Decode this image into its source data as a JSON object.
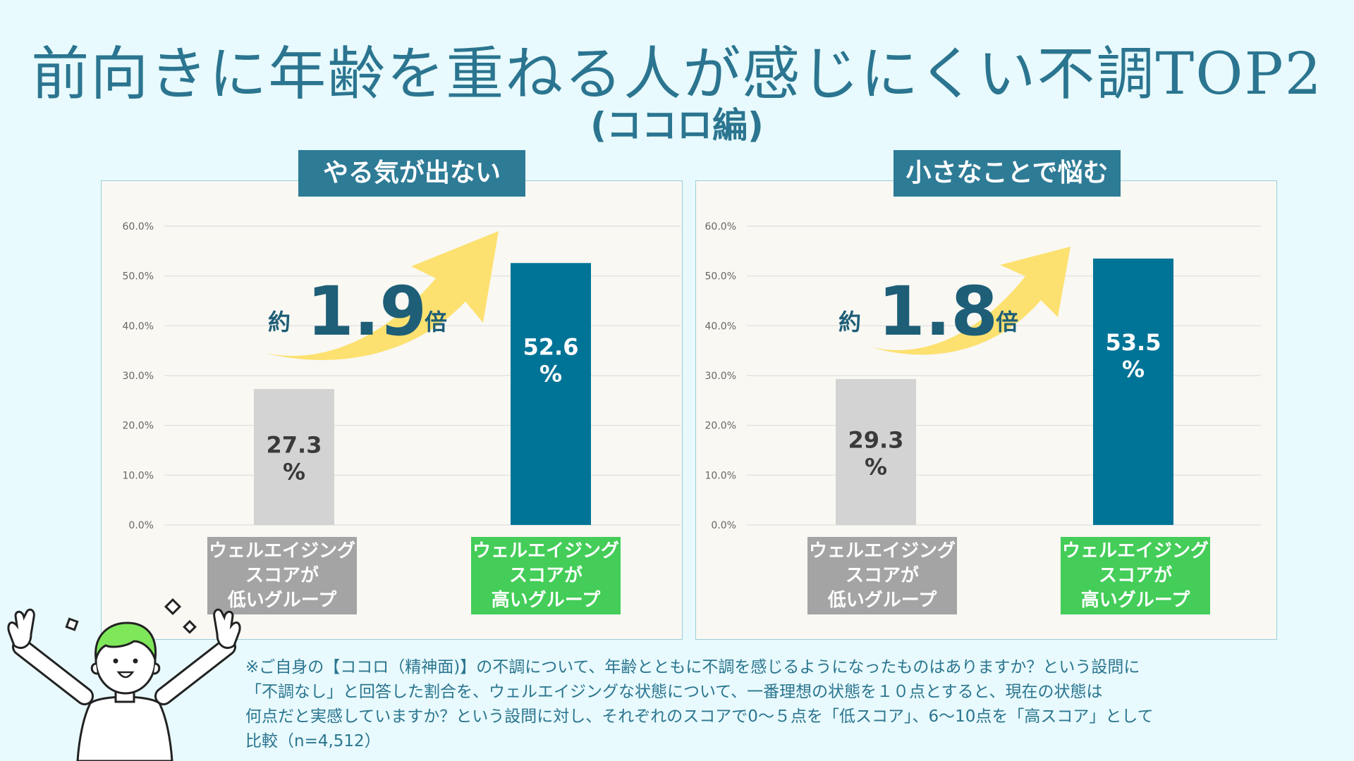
{
  "title": "前向きに年齢を重ねる人が感じにくい不調TOP2",
  "subtitle": "(ココロ編)",
  "colors": {
    "low": "#d3d3d3",
    "high": "#007497",
    "accent": "#2e7b96",
    "arrow": "#fde170"
  },
  "chart_data": [
    {
      "type": "bar",
      "title": "やる気が出ない",
      "categories": [
        "ウェルエイジング\nスコアが\n低いグループ",
        "ウェルエイジング\nスコアが\n高いグループ"
      ],
      "values": [
        27.3,
        52.6
      ],
      "value_labels": [
        "27.3\n%",
        "52.6\n%"
      ],
      "ylim": [
        0,
        60
      ],
      "yticks": [
        "0.0%",
        "10.0%",
        "20.0%",
        "30.0%",
        "40.0%",
        "50.0%",
        "60.0%"
      ],
      "annotation": {
        "prefix": "約",
        "value": "1.9",
        "suffix": "倍"
      }
    },
    {
      "type": "bar",
      "title": "小さなことで悩む",
      "categories": [
        "ウェルエイジング\nスコアが\n低いグループ",
        "ウェルエイジング\nスコアが\n高いグループ"
      ],
      "values": [
        29.3,
        53.5
      ],
      "value_labels": [
        "29.3\n%",
        "53.5\n%"
      ],
      "ylim": [
        0,
        60
      ],
      "yticks": [
        "0.0%",
        "10.0%",
        "20.0%",
        "30.0%",
        "40.0%",
        "50.0%",
        "60.0%"
      ],
      "annotation": {
        "prefix": "約",
        "value": "1.8",
        "suffix": "倍"
      }
    }
  ],
  "footnote": "※ご自身の【ココロ（精神面)】の不調について、年齢とともに不調を感じるようになったものはありますか？という設問に\n「不調なし」と回答した割合を、ウェルエイジングな状態について、一番理想の状態を１０点とすると、現在の状態は\n何点だと実感していますか？という設問に対し、それぞれのスコアで0〜５点を「低スコア」、6〜10点を「高スコア」として\n比較（n=4,512）"
}
